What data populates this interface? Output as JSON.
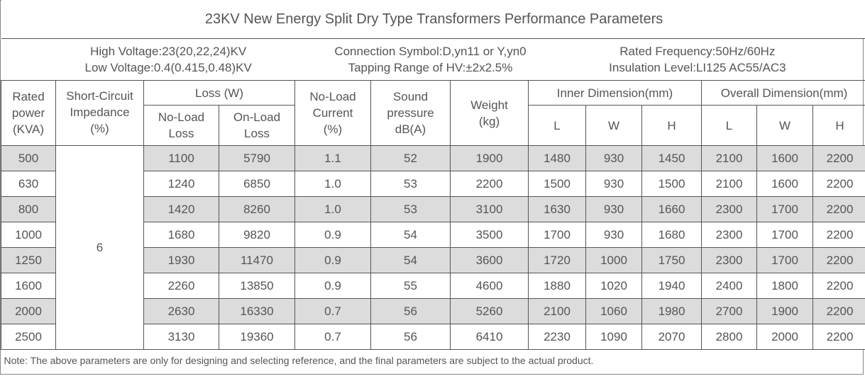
{
  "title": "23KV New Energy Split Dry Type Transformers Performance Parameters",
  "info": {
    "high_voltage": "High Voltage:23(20,22,24)KV",
    "low_voltage": "Low Voltage:0.4(0.415,0.48)KV",
    "connection": "Connection Symbol:D,yn11 or Y,yn0",
    "tapping": "Tapping Range of HV:±2x2.5%",
    "frequency": "Rated Frequency:50Hz/60Hz",
    "insulation": "Insulation Level:LI125 AC55/AC3"
  },
  "headers": {
    "rated_power": [
      "Rated",
      "power",
      "(KVA)"
    ],
    "impedance": [
      "Short-Circuit",
      "Impedance",
      "(%)"
    ],
    "loss": "Loss (W)",
    "no_load_loss": [
      "No-Load",
      "Loss"
    ],
    "on_load_loss": [
      "On-Load",
      "Loss"
    ],
    "no_load_current": [
      "No-Load",
      "Current",
      "(%)"
    ],
    "sound": [
      "Sound",
      "pressure",
      "dB(A)"
    ],
    "weight": [
      "Weight",
      "(kg)"
    ],
    "inner_dim": "Inner Dimension(mm)",
    "overall_dim": "Overall Dimension(mm)",
    "l": "L",
    "w": "W",
    "h": "H"
  },
  "impedance_value": "6",
  "rows": [
    {
      "power": "500",
      "nll": "1100",
      "oll": "5790",
      "cur": "1.1",
      "snd": "52",
      "wt": "1900",
      "il": "1480",
      "iw": "930",
      "ih": "1450",
      "ol": "2100",
      "ow": "1600",
      "oh": "2200"
    },
    {
      "power": "630",
      "nll": "1240",
      "oll": "6850",
      "cur": "1.0",
      "snd": "53",
      "wt": "2200",
      "il": "1500",
      "iw": "930",
      "ih": "1500",
      "ol": "2100",
      "ow": "1600",
      "oh": "2200"
    },
    {
      "power": "800",
      "nll": "1420",
      "oll": "8260",
      "cur": "1.0",
      "snd": "53",
      "wt": "3100",
      "il": "1630",
      "iw": "930",
      "ih": "1660",
      "ol": "2300",
      "ow": "1700",
      "oh": "2200"
    },
    {
      "power": "1000",
      "nll": "1680",
      "oll": "9820",
      "cur": "0.9",
      "snd": "54",
      "wt": "3500",
      "il": "1700",
      "iw": "930",
      "ih": "1680",
      "ol": "2300",
      "ow": "1700",
      "oh": "2200"
    },
    {
      "power": "1250",
      "nll": "1930",
      "oll": "11470",
      "cur": "0.9",
      "snd": "54",
      "wt": "3600",
      "il": "1720",
      "iw": "1000",
      "ih": "1750",
      "ol": "2300",
      "ow": "1700",
      "oh": "2200"
    },
    {
      "power": "1600",
      "nll": "2260",
      "oll": "13850",
      "cur": "0.9",
      "snd": "55",
      "wt": "4600",
      "il": "1880",
      "iw": "1020",
      "ih": "1940",
      "ol": "2400",
      "ow": "1800",
      "oh": "2200"
    },
    {
      "power": "2000",
      "nll": "2630",
      "oll": "16330",
      "cur": "0.7",
      "snd": "56",
      "wt": "5260",
      "il": "2100",
      "iw": "1060",
      "ih": "1980",
      "ol": "2700",
      "ow": "1900",
      "oh": "2200"
    },
    {
      "power": "2500",
      "nll": "3130",
      "oll": "19360",
      "cur": "0.7",
      "snd": "56",
      "wt": "6410",
      "il": "2230",
      "iw": "1090",
      "ih": "2070",
      "ol": "2800",
      "ow": "2000",
      "oh": "2200"
    }
  ],
  "note": "Note: The above parameters are only for designing and selecting  reference, and the final parameters are subject to the actual product."
}
